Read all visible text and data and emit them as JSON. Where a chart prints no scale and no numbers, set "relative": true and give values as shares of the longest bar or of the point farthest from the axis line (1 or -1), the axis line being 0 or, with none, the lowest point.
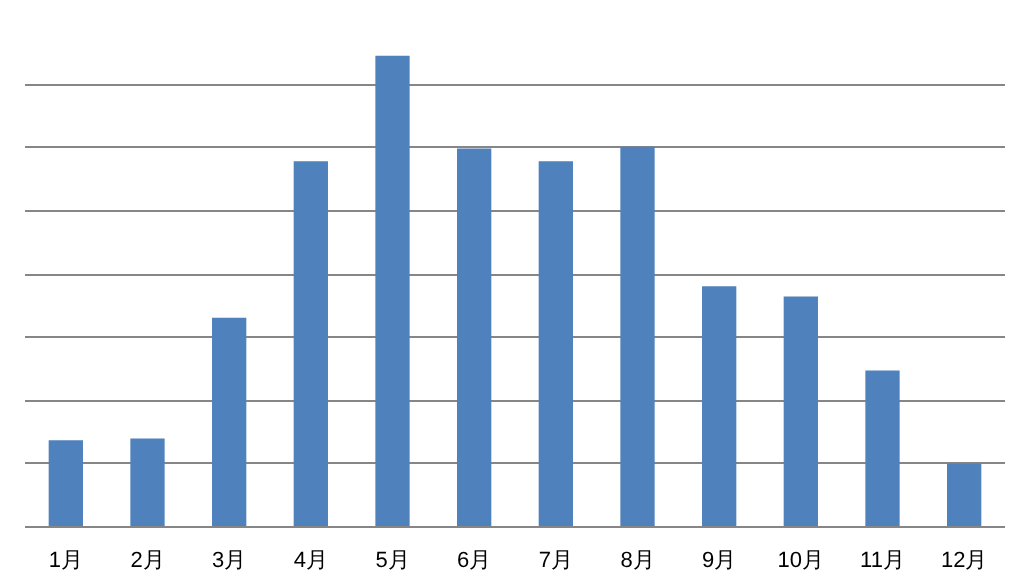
{
  "chart_data": {
    "type": "bar",
    "relative": true,
    "grid": "y",
    "color": "#4f81bd",
    "categories": [
      "1月",
      "2月",
      "3月",
      "4月",
      "5月",
      "6月",
      "7月",
      "8月",
      "9月",
      "10月",
      "11月",
      "12月"
    ],
    "values": [
      0.184,
      0.188,
      0.444,
      0.776,
      1,
      0.803,
      0.776,
      0.807,
      0.511,
      0.489,
      0.332,
      0.135
    ]
  }
}
